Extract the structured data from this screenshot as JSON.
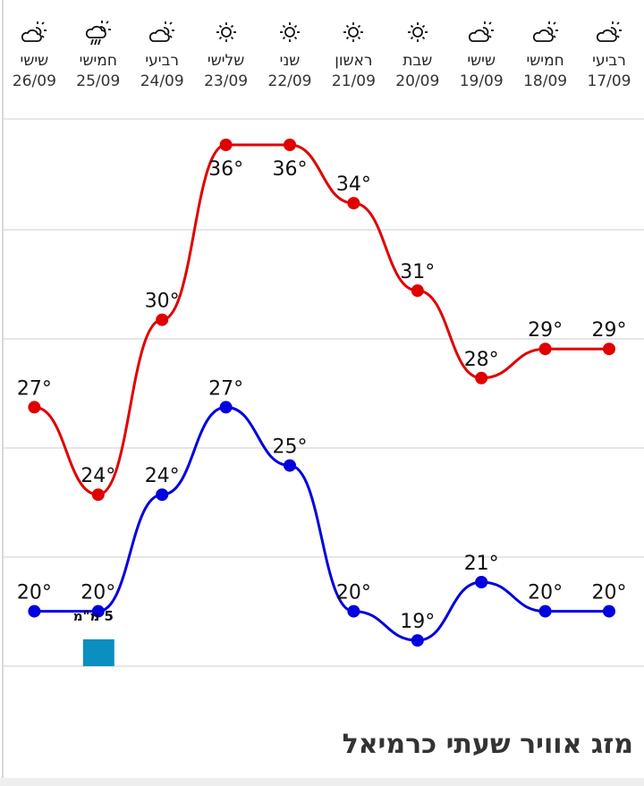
{
  "title": "מזג אוויר שעתי כרמיאל",
  "colors": {
    "high": "#e00000",
    "low": "#0000e0",
    "precip": "#0a8fc0",
    "grid": "#e6e6e6"
  },
  "chart_data": {
    "type": "line",
    "direction": "right-to-left",
    "days": [
      {
        "name": "רביעי",
        "date": "17/09",
        "icon": "partly-cloudy-icon"
      },
      {
        "name": "חמישי",
        "date": "18/09",
        "icon": "partly-cloudy-icon"
      },
      {
        "name": "שישי",
        "date": "19/09",
        "icon": "partly-cloudy-icon"
      },
      {
        "name": "שבת",
        "date": "20/09",
        "icon": "sun-icon"
      },
      {
        "name": "ראשון",
        "date": "21/09",
        "icon": "sun-icon"
      },
      {
        "name": "שני",
        "date": "22/09",
        "icon": "sun-icon"
      },
      {
        "name": "שלישי",
        "date": "23/09",
        "icon": "sun-icon"
      },
      {
        "name": "רביעי",
        "date": "24/09",
        "icon": "partly-cloudy-icon"
      },
      {
        "name": "חמישי",
        "date": "25/09",
        "icon": "rain-icon"
      },
      {
        "name": "שישי",
        "date": "26/09",
        "icon": "partly-cloudy-icon"
      }
    ],
    "series": [
      {
        "name": "high",
        "values": [
          29,
          29,
          28,
          31,
          34,
          36,
          36,
          30,
          24,
          27
        ],
        "labels": [
          "29°",
          "29°",
          "28°",
          "31°",
          "34°",
          "36°",
          "36°",
          "30°",
          "24°",
          "27°"
        ]
      },
      {
        "name": "low",
        "values": [
          20,
          20,
          21,
          19,
          20,
          25,
          27,
          24,
          20,
          20
        ],
        "labels": [
          "20°",
          "20°",
          "21°",
          "19°",
          "20°",
          "25°",
          "27°",
          "24°",
          "20°",
          "20°"
        ]
      }
    ],
    "precipitation": [
      {
        "date": "25/09",
        "value_mm": 5,
        "label": "5 מ\"מ"
      }
    ],
    "unit": "°"
  }
}
